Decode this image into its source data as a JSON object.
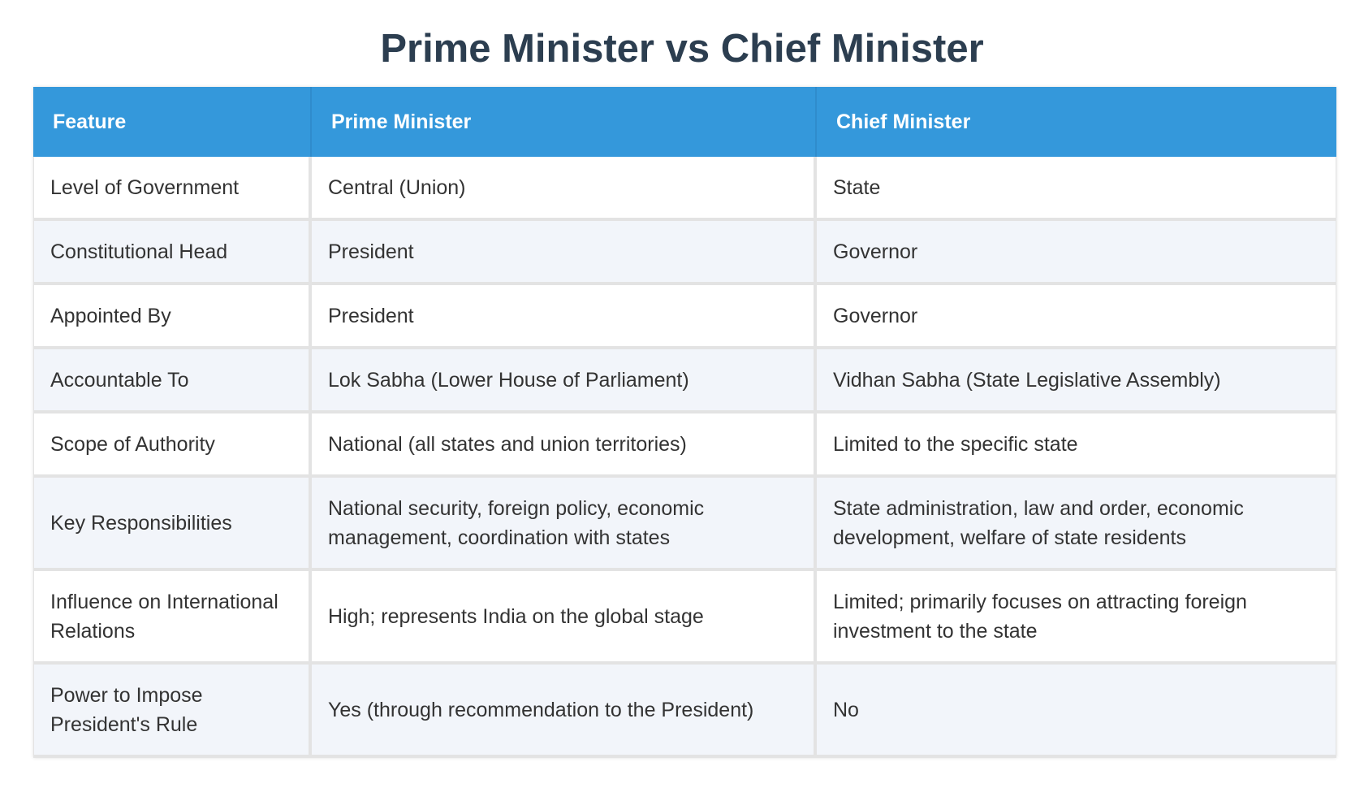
{
  "title": "Prime Minister vs Chief Minister",
  "table": {
    "headers": [
      "Feature",
      "Prime Minister",
      "Chief Minister"
    ],
    "rows": [
      [
        "Level of Government",
        "Central (Union)",
        "State"
      ],
      [
        "Constitutional Head",
        "President",
        "Governor"
      ],
      [
        "Appointed By",
        "President",
        "Governor"
      ],
      [
        "Accountable To",
        "Lok Sabha (Lower House of Parliament)",
        "Vidhan Sabha (State Legislative Assembly)"
      ],
      [
        "Scope of Authority",
        "National (all states and union territories)",
        "Limited to the specific state"
      ],
      [
        "Key Responsibilities",
        "National security, foreign policy, economic management, coordination with states",
        "State administration, law and order, economic development, welfare of state residents"
      ],
      [
        "Influence on International Relations",
        "High; represents India on the global stage",
        "Limited; primarily focuses on attracting foreign investment to the state"
      ],
      [
        "Power to Impose President's Rule",
        "Yes (through recommendation to the President)",
        "No"
      ]
    ]
  },
  "colors": {
    "title": "#2c3e50",
    "header_bg": "#3498db",
    "header_text": "#ffffff",
    "row_alt_bg": "#f2f5fa",
    "border": "#e3e3e3"
  }
}
